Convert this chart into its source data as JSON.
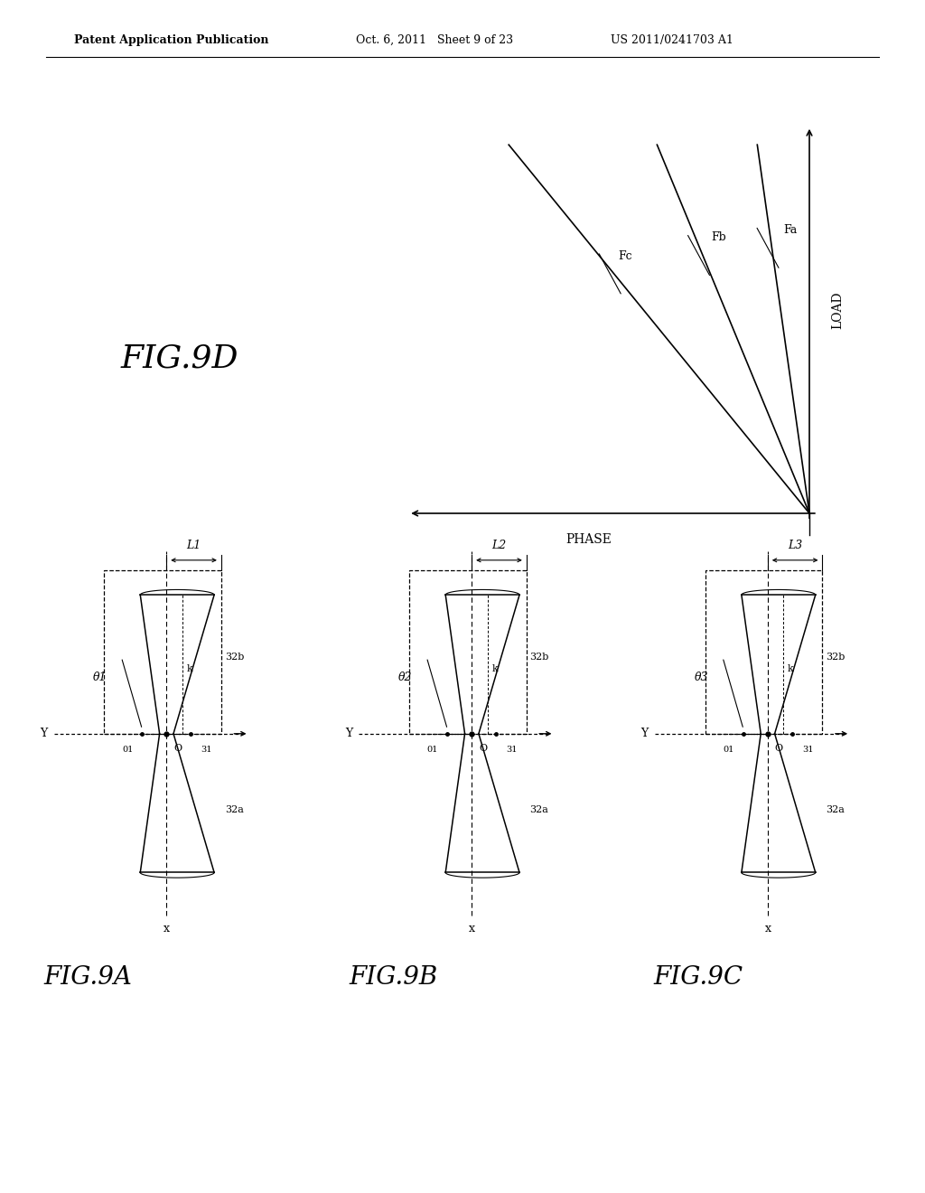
{
  "bg_color": "#ffffff",
  "header_left": "Patent Application Publication",
  "header_mid": "Oct. 6, 2011   Sheet 9 of 23",
  "header_right": "US 2011/0241703 A1",
  "fig9d_label": "FIG.9D",
  "fig9a_label": "FIG.9A",
  "fig9b_label": "FIG.9B",
  "fig9c_label": "FIG.9C",
  "load_label": "LOAD",
  "phase_label": "PHASE",
  "fa_label": "Fa",
  "fb_label": "Fb",
  "fc_label": "Fc",
  "line_color": "#000000",
  "text_color": "#000000",
  "fa_slope": 0.13,
  "fb_slope": 0.38,
  "fc_slope": 0.75
}
